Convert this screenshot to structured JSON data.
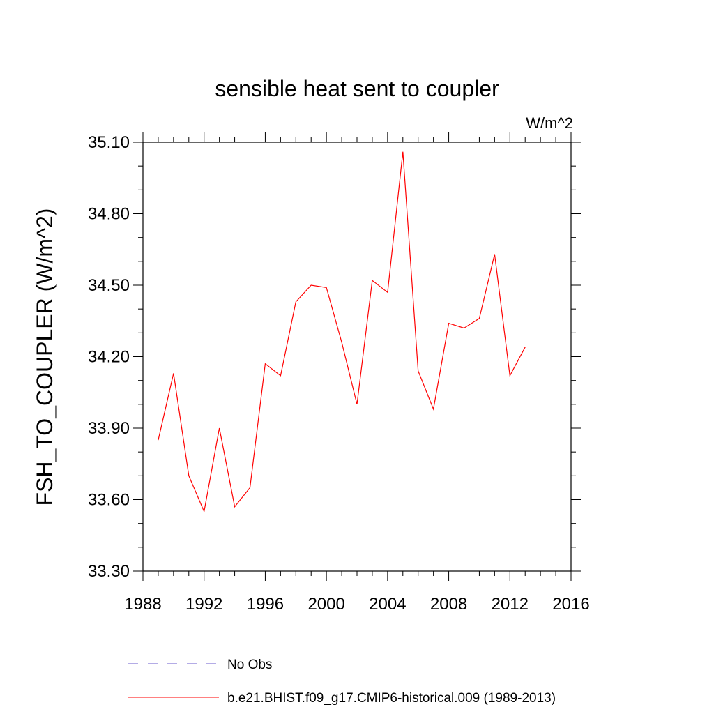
{
  "chart_data": {
    "type": "line",
    "title": "sensible heat sent to coupler",
    "units": "W/m^2",
    "ylabel": "FSH_TO_COUPLER  (W/m^2)",
    "xlabel": "",
    "xlim": [
      1988,
      2016
    ],
    "ylim": [
      33.3,
      35.1
    ],
    "xticks": [
      1988,
      1992,
      1996,
      2000,
      2004,
      2008,
      2012,
      2016
    ],
    "xtick_labels": [
      "1988",
      "1992",
      "1996",
      "2000",
      "2004",
      "2008",
      "2012",
      "2016"
    ],
    "yticks": [
      33.3,
      33.6,
      33.9,
      34.2,
      34.5,
      34.8,
      35.1
    ],
    "ytick_labels": [
      "33.30",
      "33.60",
      "33.90",
      "34.20",
      "34.50",
      "34.80",
      "35.10"
    ],
    "series": [
      {
        "name": "b.e21.BHIST.f09_g17.CMIP6-historical.009 (1989-2013)",
        "color": "#ff0000",
        "style": "solid",
        "x": [
          1989,
          1990,
          1991,
          1992,
          1993,
          1994,
          1995,
          1996,
          1997,
          1998,
          1999,
          2000,
          2001,
          2002,
          2003,
          2004,
          2005,
          2006,
          2007,
          2008,
          2009,
          2010,
          2011,
          2012,
          2013
        ],
        "y": [
          33.85,
          34.13,
          33.7,
          33.55,
          33.9,
          33.57,
          33.65,
          34.17,
          34.12,
          34.43,
          34.5,
          34.49,
          34.26,
          34.0,
          34.52,
          34.47,
          35.06,
          34.14,
          33.98,
          34.34,
          34.32,
          34.36,
          34.63,
          34.12,
          34.24
        ]
      }
    ],
    "legend": [
      {
        "label": "No Obs",
        "color": "#6a5acd",
        "style": "dashed"
      },
      {
        "label": "b.e21.BHIST.f09_g17.CMIP6-historical.009 (1989-2013)",
        "color": "#ff0000",
        "style": "solid"
      }
    ],
    "legend_position": "bottom",
    "grid": false
  }
}
